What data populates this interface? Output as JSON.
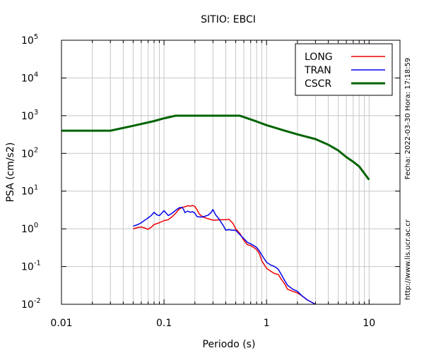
{
  "chart_data": {
    "type": "line",
    "title": "SITIO: EBCI",
    "xlabel": "Periodo (s)",
    "ylabel": "PSA (cm/s2)",
    "x_scale": "log",
    "y_scale": "log",
    "xlim": [
      0.01,
      20
    ],
    "ylim": [
      0.01,
      100000
    ],
    "x_ticks": [
      {
        "value": 0.01,
        "label": "0.01"
      },
      {
        "value": 0.1,
        "label": "0.1"
      },
      {
        "value": 1,
        "label": "1"
      },
      {
        "value": 10,
        "label": "10"
      }
    ],
    "y_ticks": [
      {
        "value": 0.01,
        "base": "10",
        "exp": "-2"
      },
      {
        "value": 0.1,
        "base": "10",
        "exp": "-1"
      },
      {
        "value": 1,
        "base": "10",
        "exp": "0"
      },
      {
        "value": 10,
        "base": "10",
        "exp": "1"
      },
      {
        "value": 100,
        "base": "10",
        "exp": "2"
      },
      {
        "value": 1000,
        "base": "10",
        "exp": "3"
      },
      {
        "value": 10000,
        "base": "10",
        "exp": "4"
      },
      {
        "value": 100000,
        "base": "10",
        "exp": "5"
      }
    ],
    "grid": true,
    "legend_position": "top-right",
    "series": [
      {
        "name": "LONG",
        "color": "#ee0000",
        "points": [
          [
            0.05,
            1.0
          ],
          [
            0.055,
            1.08
          ],
          [
            0.06,
            1.12
          ],
          [
            0.065,
            1.05
          ],
          [
            0.07,
            0.97
          ],
          [
            0.075,
            1.1
          ],
          [
            0.08,
            1.3
          ],
          [
            0.09,
            1.45
          ],
          [
            0.1,
            1.65
          ],
          [
            0.11,
            1.75
          ],
          [
            0.12,
            2.1
          ],
          [
            0.13,
            2.6
          ],
          [
            0.14,
            3.3
          ],
          [
            0.15,
            3.7
          ],
          [
            0.16,
            3.85
          ],
          [
            0.17,
            4.1
          ],
          [
            0.18,
            4.0
          ],
          [
            0.19,
            4.15
          ],
          [
            0.2,
            3.9
          ],
          [
            0.21,
            3.2
          ],
          [
            0.22,
            2.5
          ],
          [
            0.24,
            2.05
          ],
          [
            0.26,
            1.9
          ],
          [
            0.28,
            1.8
          ],
          [
            0.3,
            1.7
          ],
          [
            0.32,
            1.7
          ],
          [
            0.35,
            1.75
          ],
          [
            0.4,
            1.75
          ],
          [
            0.43,
            1.8
          ],
          [
            0.47,
            1.4
          ],
          [
            0.5,
            1.0
          ],
          [
            0.55,
            0.75
          ],
          [
            0.6,
            0.5
          ],
          [
            0.65,
            0.38
          ],
          [
            0.7,
            0.36
          ],
          [
            0.75,
            0.32
          ],
          [
            0.8,
            0.28
          ],
          [
            0.85,
            0.22
          ],
          [
            0.9,
            0.14
          ],
          [
            1.0,
            0.09
          ],
          [
            1.1,
            0.075
          ],
          [
            1.2,
            0.065
          ],
          [
            1.3,
            0.062
          ],
          [
            1.4,
            0.045
          ],
          [
            1.5,
            0.035
          ],
          [
            1.6,
            0.025
          ],
          [
            1.8,
            0.022
          ],
          [
            2.0,
            0.02
          ],
          [
            2.2,
            0.017
          ],
          [
            2.5,
            0.013
          ],
          [
            3.0,
            0.01
          ]
        ]
      },
      {
        "name": "TRAN",
        "color": "#0000ee",
        "points": [
          [
            0.05,
            1.18
          ],
          [
            0.055,
            1.28
          ],
          [
            0.06,
            1.45
          ],
          [
            0.065,
            1.7
          ],
          [
            0.07,
            1.95
          ],
          [
            0.075,
            2.25
          ],
          [
            0.08,
            2.75
          ],
          [
            0.085,
            2.35
          ],
          [
            0.09,
            2.25
          ],
          [
            0.095,
            2.6
          ],
          [
            0.1,
            3.05
          ],
          [
            0.105,
            2.6
          ],
          [
            0.11,
            2.25
          ],
          [
            0.12,
            2.6
          ],
          [
            0.13,
            3.1
          ],
          [
            0.14,
            3.6
          ],
          [
            0.15,
            3.7
          ],
          [
            0.155,
            3.3
          ],
          [
            0.16,
            2.7
          ],
          [
            0.17,
            2.95
          ],
          [
            0.18,
            2.75
          ],
          [
            0.19,
            2.85
          ],
          [
            0.2,
            2.6
          ],
          [
            0.21,
            2.1
          ],
          [
            0.23,
            2.05
          ],
          [
            0.25,
            2.15
          ],
          [
            0.27,
            2.3
          ],
          [
            0.29,
            2.8
          ],
          [
            0.3,
            3.25
          ],
          [
            0.32,
            2.3
          ],
          [
            0.34,
            1.9
          ],
          [
            0.36,
            1.5
          ],
          [
            0.38,
            1.2
          ],
          [
            0.4,
            0.92
          ],
          [
            0.43,
            0.95
          ],
          [
            0.46,
            0.92
          ],
          [
            0.5,
            0.92
          ],
          [
            0.55,
            0.7
          ],
          [
            0.6,
            0.55
          ],
          [
            0.65,
            0.44
          ],
          [
            0.7,
            0.4
          ],
          [
            0.75,
            0.36
          ],
          [
            0.8,
            0.32
          ],
          [
            0.85,
            0.26
          ],
          [
            0.9,
            0.2
          ],
          [
            1.0,
            0.13
          ],
          [
            1.1,
            0.11
          ],
          [
            1.2,
            0.1
          ],
          [
            1.3,
            0.085
          ],
          [
            1.4,
            0.06
          ],
          [
            1.5,
            0.043
          ],
          [
            1.6,
            0.032
          ],
          [
            1.8,
            0.025
          ],
          [
            2.0,
            0.022
          ],
          [
            2.2,
            0.017
          ],
          [
            2.5,
            0.013
          ],
          [
            3.0,
            0.01
          ]
        ]
      },
      {
        "name": "CSCR",
        "color": "#006400",
        "points": [
          [
            0.01,
            400
          ],
          [
            0.03,
            400
          ],
          [
            0.05,
            540
          ],
          [
            0.08,
            720
          ],
          [
            0.1,
            850
          ],
          [
            0.13,
            1000
          ],
          [
            0.2,
            1000
          ],
          [
            0.3,
            1000
          ],
          [
            0.4,
            1000
          ],
          [
            0.55,
            1000
          ],
          [
            0.8,
            700
          ],
          [
            1.0,
            560
          ],
          [
            1.5,
            400
          ],
          [
            2.0,
            320
          ],
          [
            3.0,
            240
          ],
          [
            4.0,
            170
          ],
          [
            5.0,
            120
          ],
          [
            6.0,
            80
          ],
          [
            7.0,
            60
          ],
          [
            8.0,
            45
          ],
          [
            10.0,
            20
          ]
        ]
      }
    ],
    "side_text": {
      "date_label": "Fecha: 2022-03-30 Hora: 17:18:59",
      "url_label": "http://www.lis.ucr.ac.cr"
    }
  }
}
